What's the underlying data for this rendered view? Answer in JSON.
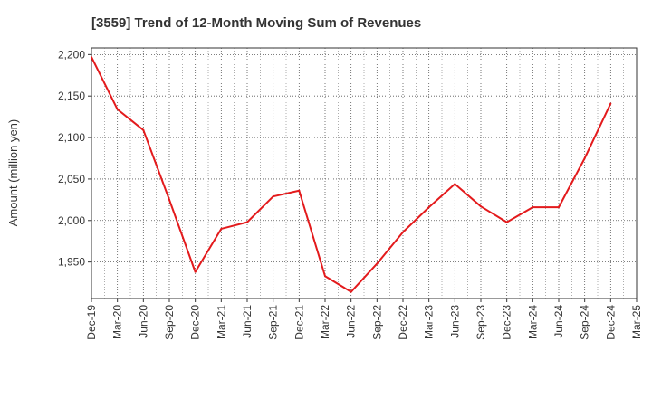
{
  "chart_data": {
    "type": "line",
    "title": "[3559]  Trend of 12-Month Moving Sum of Revenues",
    "xlabel": "",
    "ylabel": "Amount (million yen)",
    "x_ticks": [
      "Dec-19",
      "Mar-20",
      "Jun-20",
      "Sep-20",
      "Dec-20",
      "Mar-21",
      "Jun-21",
      "Sep-21",
      "Dec-21",
      "Mar-22",
      "Jun-22",
      "Sep-22",
      "Dec-22",
      "Mar-23",
      "Jun-23",
      "Sep-23",
      "Dec-23",
      "Mar-24",
      "Jun-24",
      "Sep-24",
      "Dec-24",
      "Mar-25"
    ],
    "y_ticks": [
      "1,950",
      "2,000",
      "2,050",
      "2,100",
      "2,150",
      "2,200"
    ],
    "y_tick_values": [
      1950,
      2000,
      2050,
      2100,
      2150,
      2200
    ],
    "ylim": [
      1906,
      2208
    ],
    "grid": true,
    "line_color": "#e31a1c",
    "series": [
      {
        "x": [
          "Dec-19",
          "Mar-20",
          "Jun-20",
          "Sep-20",
          "Dec-20",
          "Mar-21",
          "Jun-21",
          "Sep-21",
          "Dec-21",
          "Mar-22",
          "Jun-22",
          "Sep-22",
          "Dec-22",
          "Mar-23",
          "Jun-23",
          "Sep-23",
          "Dec-23",
          "Mar-24",
          "Jun-24",
          "Sep-24",
          "Dec-24"
        ],
        "values": [
          2197,
          2134,
          2109,
          2025,
          1938,
          1990,
          1998,
          2029,
          2036,
          1933,
          1914,
          1948,
          1986,
          2016,
          2044,
          2017,
          1998,
          2016,
          2016,
          2075,
          2141
        ]
      }
    ]
  }
}
